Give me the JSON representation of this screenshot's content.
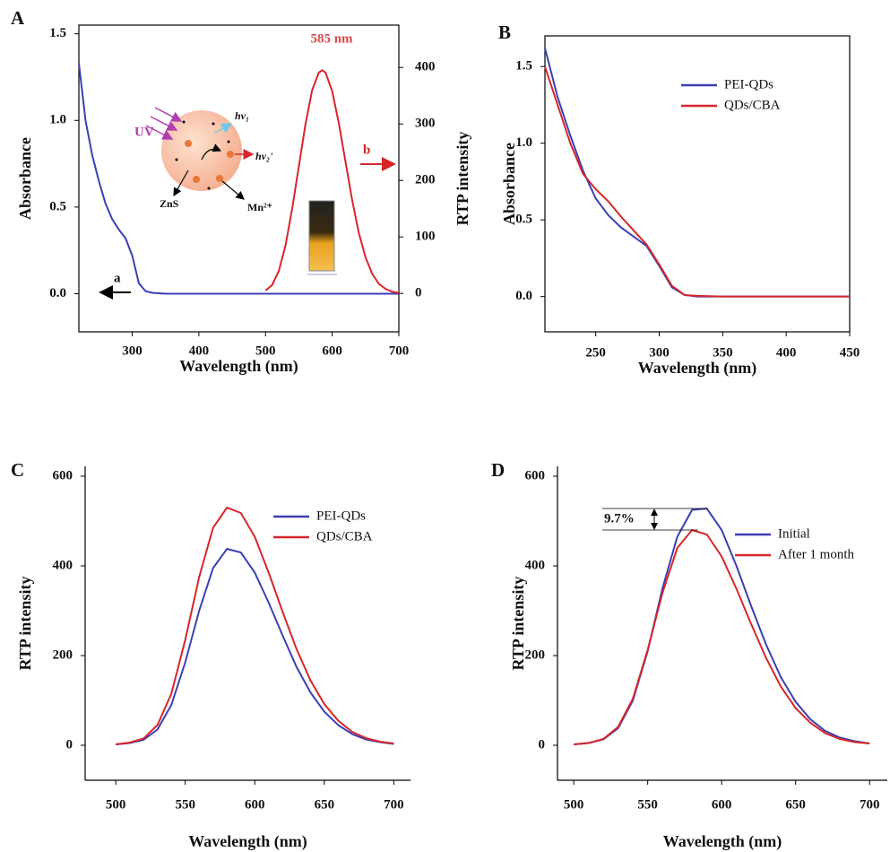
{
  "chart_data": [
    {
      "type": "line",
      "panel_label": "A",
      "xlabel": "Wavelength (nm)",
      "ylabel": "Absorbance",
      "y2label": "RTP intensity",
      "xlim": [
        220,
        700
      ],
      "xticks": [
        300,
        400,
        500,
        600,
        700
      ],
      "ylim": [
        -0.22,
        1.55
      ],
      "yticks": [
        {
          "value": 0,
          "label": "0.0"
        },
        0.5,
        {
          "value": 1,
          "label": "1.0"
        },
        1.5
      ],
      "y2lim": [
        -68,
        475
      ],
      "y2ticks": [
        0,
        100,
        200,
        300,
        400
      ],
      "series": [
        {
          "color": "#3b3fb5",
          "x": [
            220,
            230,
            240,
            250,
            260,
            270,
            280,
            290,
            300,
            310,
            320,
            330,
            350,
            400,
            450,
            500,
            550,
            600,
            650,
            700
          ],
          "values": [
            1.33,
            1.0,
            0.8,
            0.65,
            0.52,
            0.43,
            0.37,
            0.32,
            0.22,
            0.06,
            0.015,
            0.005,
            0,
            0,
            0,
            0,
            0,
            0,
            0,
            0
          ]
        },
        {
          "color": "#d6262b",
          "axis": "y2",
          "x": [
            500,
            510,
            520,
            530,
            540,
            550,
            560,
            570,
            580,
            585,
            590,
            600,
            610,
            620,
            630,
            640,
            650,
            660,
            670,
            680,
            690,
            700
          ],
          "values": [
            5,
            15,
            40,
            85,
            150,
            225,
            300,
            360,
            391,
            395,
            391,
            358,
            301,
            233,
            165,
            107,
            64,
            35,
            17,
            8,
            3,
            1
          ]
        }
      ],
      "peak_label": "585 nm",
      "arrow_labels": [
        "a",
        "b"
      ],
      "inset_labels": [
        "UV",
        "hν₁",
        "hν₂'",
        "ZnS",
        "Mn²⁺"
      ]
    },
    {
      "type": "line",
      "panel_label": "B",
      "xlabel": "Wavelength (nm)",
      "ylabel": "Absorbance",
      "xlim": [
        210,
        450
      ],
      "xticks": [
        250,
        300,
        350,
        400,
        450
      ],
      "ylim": [
        -0.23,
        1.7
      ],
      "yticks": [
        {
          "value": 0,
          "label": "0.0"
        },
        0.5,
        {
          "value": 1,
          "label": "1.0"
        },
        1.5
      ],
      "legend": "upper right",
      "series": [
        {
          "name": "PEI-QDs",
          "color": "#3b3fb5",
          "x": [
            210,
            220,
            230,
            240,
            250,
            260,
            270,
            280,
            290,
            300,
            310,
            320,
            330,
            350,
            400,
            450
          ],
          "values": [
            1.62,
            1.3,
            1.05,
            0.82,
            0.64,
            0.53,
            0.45,
            0.39,
            0.33,
            0.2,
            0.06,
            0.01,
            0,
            0,
            0,
            0
          ]
        },
        {
          "name": "QDs/CBA",
          "color": "#d6262b",
          "x": [
            210,
            220,
            230,
            240,
            250,
            260,
            270,
            280,
            290,
            300,
            310,
            320,
            330,
            350,
            400,
            450
          ],
          "values": [
            1.5,
            1.25,
            1.0,
            0.8,
            0.7,
            0.62,
            0.52,
            0.43,
            0.34,
            0.21,
            0.07,
            0.01,
            0.005,
            0,
            0,
            0
          ]
        }
      ]
    },
    {
      "type": "line",
      "panel_label": "C",
      "xlabel": "Wavelength (nm)",
      "ylabel": "RTP intensity",
      "xlim": [
        478,
        712
      ],
      "xticks": [
        500,
        550,
        600,
        650,
        700
      ],
      "ylim": [
        -78,
        622
      ],
      "yticks": [
        0,
        200,
        400,
        600
      ],
      "legend": "upper right",
      "series": [
        {
          "name": "PEI-QDs",
          "color": "#3b3fb5",
          "x": [
            500,
            510,
            520,
            530,
            540,
            550,
            560,
            570,
            580,
            590,
            600,
            610,
            620,
            630,
            640,
            650,
            660,
            670,
            680,
            690,
            700
          ],
          "values": [
            2,
            5,
            12,
            35,
            90,
            185,
            300,
            395,
            438,
            430,
            385,
            318,
            245,
            175,
            118,
            75,
            45,
            25,
            13,
            7,
            3
          ]
        },
        {
          "name": "QDs/CBA",
          "color": "#d6262b",
          "x": [
            500,
            510,
            520,
            530,
            540,
            550,
            560,
            570,
            580,
            590,
            600,
            610,
            620,
            630,
            640,
            650,
            660,
            670,
            680,
            690,
            700
          ],
          "values": [
            2,
            6,
            15,
            45,
            115,
            235,
            375,
            485,
            530,
            518,
            465,
            385,
            298,
            215,
            145,
            92,
            55,
            30,
            16,
            8,
            4
          ]
        }
      ]
    },
    {
      "type": "line",
      "panel_label": "D",
      "xlabel": "Wavelength (nm)",
      "ylabel": "RTP intensity",
      "xlim": [
        489,
        712
      ],
      "xticks": [
        500,
        550,
        600,
        650,
        700
      ],
      "ylim": [
        -78,
        622
      ],
      "yticks": [
        0,
        200,
        400,
        600
      ],
      "legend": "upper right",
      "annotation": "9.7%",
      "series": [
        {
          "name": "Initial",
          "color": "#3b3fb5",
          "x": [
            500,
            510,
            520,
            530,
            540,
            550,
            560,
            570,
            580,
            590,
            600,
            610,
            620,
            630,
            640,
            650,
            660,
            670,
            680,
            690,
            700
          ],
          "values": [
            2,
            5,
            13,
            38,
            100,
            210,
            350,
            465,
            525,
            528,
            480,
            400,
            310,
            225,
            152,
            97,
            58,
            32,
            17,
            9,
            4
          ]
        },
        {
          "name": "After 1 month",
          "color": "#d6262b",
          "x": [
            500,
            510,
            520,
            530,
            540,
            550,
            560,
            570,
            580,
            590,
            600,
            610,
            620,
            630,
            640,
            650,
            660,
            670,
            680,
            690,
            700
          ],
          "values": [
            2,
            5,
            14,
            41,
            104,
            213,
            340,
            440,
            480,
            470,
            421,
            349,
            270,
            195,
            131,
            83,
            50,
            27,
            14,
            7,
            4
          ]
        }
      ]
    }
  ]
}
